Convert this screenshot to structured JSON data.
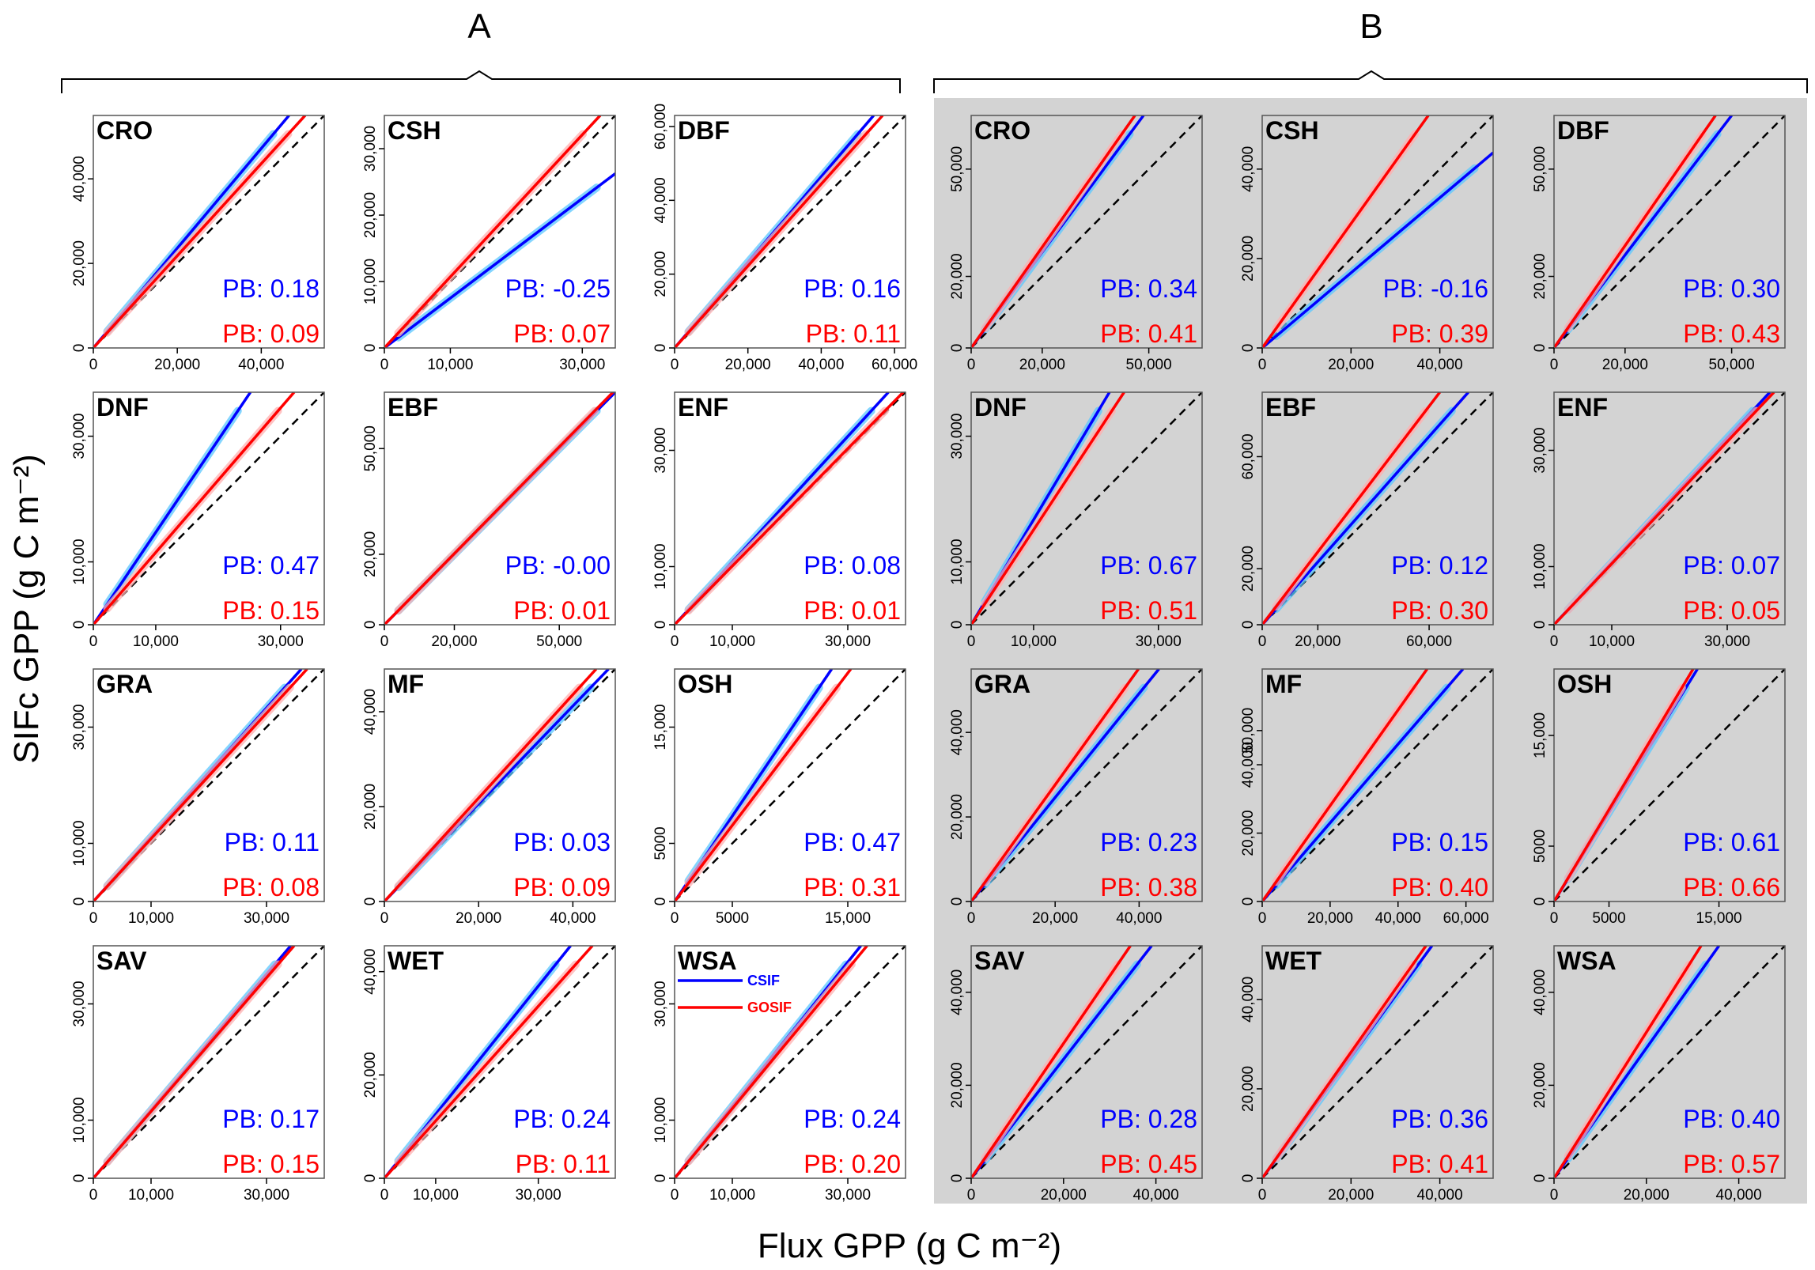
{
  "figure": {
    "group_labels": [
      "A",
      "B"
    ],
    "y_axis_label": "SIFc GPP (g C m⁻²)",
    "x_axis_label": "Flux GPP (g C m⁻²)",
    "legend": [
      {
        "name": "CSIF",
        "color": "#0000ff"
      },
      {
        "name": "GOSIF",
        "color": "#ff0000"
      }
    ],
    "colors": {
      "csif": "#0000ff",
      "gosif": "#ff0000",
      "csif_band": "#5cc8ff",
      "gosif_band": "#ffb0b0",
      "panel_b_background": "#d3d3d3"
    }
  },
  "chart_data": [
    {
      "type": "line",
      "group": "A",
      "title": "CRO",
      "xlim": [
        0,
        55000
      ],
      "ylim": [
        0,
        55000
      ],
      "xticks": [
        0,
        20000,
        40000
      ],
      "xtick_labels": [
        "0",
        "20,000",
        "40,000"
      ],
      "yticks": [
        0,
        20000,
        40000
      ],
      "ytick_labels": [
        "0",
        "20,000",
        "40,000"
      ],
      "series": [
        {
          "name": "CSIF",
          "slope": 1.18,
          "pb_label": "PB: 0.18"
        },
        {
          "name": "GOSIF",
          "slope": 1.09,
          "pb_label": "PB: 0.09"
        }
      ]
    },
    {
      "type": "line",
      "group": "A",
      "title": "CSH",
      "xlim": [
        0,
        35000
      ],
      "ylim": [
        0,
        35000
      ],
      "xticks": [
        0,
        10000,
        30000
      ],
      "xtick_labels": [
        "0",
        "10,000",
        "30,000"
      ],
      "yticks": [
        0,
        10000,
        20000,
        30000
      ],
      "ytick_labels": [
        "0",
        "10,000",
        "20,000",
        "30,000"
      ],
      "series": [
        {
          "name": "CSIF",
          "slope": 0.75,
          "pb_label": "PB: -0.25"
        },
        {
          "name": "GOSIF",
          "slope": 1.07,
          "pb_label": "PB: 0.07"
        }
      ]
    },
    {
      "type": "line",
      "group": "A",
      "title": "DBF",
      "xlim": [
        0,
        63000
      ],
      "ylim": [
        0,
        63000
      ],
      "xticks": [
        0,
        20000,
        40000,
        60000
      ],
      "xtick_labels": [
        "0",
        "20,000",
        "40,000",
        "60,000"
      ],
      "yticks": [
        0,
        20000,
        40000,
        60000
      ],
      "ytick_labels": [
        "0",
        "20,000",
        "40,000",
        "60,000"
      ],
      "series": [
        {
          "name": "CSIF",
          "slope": 1.16,
          "pb_label": "PB: 0.16"
        },
        {
          "name": "GOSIF",
          "slope": 1.11,
          "pb_label": "PB: 0.11"
        }
      ]
    },
    {
      "type": "line",
      "group": "A",
      "title": "DNF",
      "xlim": [
        0,
        37000
      ],
      "ylim": [
        0,
        37000
      ],
      "xticks": [
        0,
        10000,
        30000
      ],
      "xtick_labels": [
        "0",
        "10,000",
        "30,000"
      ],
      "yticks": [
        0,
        10000,
        30000
      ],
      "ytick_labels": [
        "0",
        "10,000",
        "30,000"
      ],
      "series": [
        {
          "name": "CSIF",
          "slope": 1.47,
          "pb_label": "PB: 0.47"
        },
        {
          "name": "GOSIF",
          "slope": 1.15,
          "pb_label": "PB: 0.15"
        }
      ]
    },
    {
      "type": "line",
      "group": "A",
      "title": "EBF",
      "xlim": [
        0,
        66000
      ],
      "ylim": [
        0,
        66000
      ],
      "xticks": [
        0,
        20000,
        50000
      ],
      "xtick_labels": [
        "0",
        "20,000",
        "50,000"
      ],
      "yticks": [
        0,
        20000,
        50000
      ],
      "ytick_labels": [
        "0",
        "20,000",
        "50,000"
      ],
      "series": [
        {
          "name": "CSIF",
          "slope": 1.0,
          "pb_label": "PB: -0.00"
        },
        {
          "name": "GOSIF",
          "slope": 1.01,
          "pb_label": "PB: 0.01"
        }
      ]
    },
    {
      "type": "line",
      "group": "A",
      "title": "ENF",
      "xlim": [
        0,
        40000
      ],
      "ylim": [
        0,
        40000
      ],
      "xticks": [
        0,
        10000,
        30000
      ],
      "xtick_labels": [
        "0",
        "10,000",
        "30,000"
      ],
      "yticks": [
        0,
        10000,
        30000
      ],
      "ytick_labels": [
        "0",
        "10,000",
        "30,000"
      ],
      "series": [
        {
          "name": "CSIF",
          "slope": 1.08,
          "pb_label": "PB: 0.08"
        },
        {
          "name": "GOSIF",
          "slope": 1.01,
          "pb_label": "PB: 0.01"
        }
      ]
    },
    {
      "type": "line",
      "group": "A",
      "title": "GRA",
      "xlim": [
        0,
        40000
      ],
      "ylim": [
        0,
        40000
      ],
      "xticks": [
        0,
        10000,
        30000
      ],
      "xtick_labels": [
        "0",
        "10,000",
        "30,000"
      ],
      "yticks": [
        0,
        10000,
        30000
      ],
      "ytick_labels": [
        "0",
        "10,000",
        "30,000"
      ],
      "series": [
        {
          "name": "CSIF",
          "slope": 1.11,
          "pb_label": "PB: 0.11"
        },
        {
          "name": "GOSIF",
          "slope": 1.08,
          "pb_label": "PB: 0.08"
        }
      ]
    },
    {
      "type": "line",
      "group": "A",
      "title": "MF",
      "xlim": [
        0,
        49000
      ],
      "ylim": [
        0,
        49000
      ],
      "xticks": [
        0,
        20000,
        40000
      ],
      "xtick_labels": [
        "0",
        "20,000",
        "40,000"
      ],
      "yticks": [
        0,
        20000,
        40000
      ],
      "ytick_labels": [
        "0",
        "20,000",
        "40,000"
      ],
      "series": [
        {
          "name": "CSIF",
          "slope": 1.03,
          "pb_label": "PB: 0.03"
        },
        {
          "name": "GOSIF",
          "slope": 1.09,
          "pb_label": "PB: 0.09"
        }
      ]
    },
    {
      "type": "line",
      "group": "A",
      "title": "OSH",
      "xlim": [
        0,
        20000
      ],
      "ylim": [
        0,
        20000
      ],
      "xticks": [
        0,
        5000,
        15000
      ],
      "xtick_labels": [
        "0",
        "5000",
        "15,000"
      ],
      "yticks": [
        0,
        5000,
        15000
      ],
      "ytick_labels": [
        "0",
        "5000",
        "15,000"
      ],
      "series": [
        {
          "name": "CSIF",
          "slope": 1.47,
          "pb_label": "PB: 0.47"
        },
        {
          "name": "GOSIF",
          "slope": 1.31,
          "pb_label": "PB: 0.31"
        }
      ]
    },
    {
      "type": "line",
      "group": "A",
      "title": "SAV",
      "xlim": [
        0,
        40000
      ],
      "ylim": [
        0,
        40000
      ],
      "xticks": [
        0,
        10000,
        30000
      ],
      "xtick_labels": [
        "0",
        "10,000",
        "30,000"
      ],
      "yticks": [
        0,
        10000,
        30000
      ],
      "ytick_labels": [
        "0",
        "10,000",
        "30,000"
      ],
      "series": [
        {
          "name": "CSIF",
          "slope": 1.17,
          "pb_label": "PB: 0.17"
        },
        {
          "name": "GOSIF",
          "slope": 1.15,
          "pb_label": "PB: 0.15"
        }
      ]
    },
    {
      "type": "line",
      "group": "A",
      "title": "WET",
      "xlim": [
        0,
        45000
      ],
      "ylim": [
        0,
        45000
      ],
      "xticks": [
        0,
        10000,
        30000
      ],
      "xtick_labels": [
        "0",
        "10,000",
        "30,000"
      ],
      "yticks": [
        0,
        20000,
        40000
      ],
      "ytick_labels": [
        "0",
        "20,000",
        "40,000"
      ],
      "series": [
        {
          "name": "CSIF",
          "slope": 1.24,
          "pb_label": "PB: 0.24"
        },
        {
          "name": "GOSIF",
          "slope": 1.11,
          "pb_label": "PB: 0.11"
        }
      ]
    },
    {
      "type": "line",
      "group": "A",
      "title": "WSA",
      "xlim": [
        0,
        40000
      ],
      "ylim": [
        0,
        40000
      ],
      "xticks": [
        0,
        10000,
        30000
      ],
      "xtick_labels": [
        "0",
        "10,000",
        "30,000"
      ],
      "yticks": [
        0,
        10000,
        30000
      ],
      "ytick_labels": [
        "0",
        "10,000",
        "30,000"
      ],
      "legend": true,
      "series": [
        {
          "name": "CSIF",
          "slope": 1.24,
          "pb_label": "PB: 0.24"
        },
        {
          "name": "GOSIF",
          "slope": 1.2,
          "pb_label": "PB: 0.20"
        }
      ]
    },
    {
      "type": "line",
      "group": "B",
      "title": "CRO",
      "xlim": [
        0,
        65000
      ],
      "ylim": [
        0,
        65000
      ],
      "xticks": [
        0,
        20000,
        50000
      ],
      "xtick_labels": [
        "0",
        "20,000",
        "50,000"
      ],
      "yticks": [
        0,
        20000,
        50000
      ],
      "ytick_labels": [
        "0",
        "20,000",
        "50,000"
      ],
      "series": [
        {
          "name": "CSIF",
          "slope": 1.34,
          "pb_label": "PB: 0.34"
        },
        {
          "name": "GOSIF",
          "slope": 1.41,
          "pb_label": "PB: 0.41"
        }
      ]
    },
    {
      "type": "line",
      "group": "B",
      "title": "CSH",
      "xlim": [
        0,
        52000
      ],
      "ylim": [
        0,
        52000
      ],
      "xticks": [
        0,
        20000,
        40000
      ],
      "xtick_labels": [
        "0",
        "20,000",
        "40,000"
      ],
      "yticks": [
        0,
        20000,
        40000
      ],
      "ytick_labels": [
        "0",
        "20,000",
        "40,000"
      ],
      "series": [
        {
          "name": "CSIF",
          "slope": 0.84,
          "pb_label": "PB: -0.16"
        },
        {
          "name": "GOSIF",
          "slope": 1.39,
          "pb_label": "PB: 0.39"
        }
      ]
    },
    {
      "type": "line",
      "group": "B",
      "title": "DBF",
      "xlim": [
        0,
        65000
      ],
      "ylim": [
        0,
        65000
      ],
      "xticks": [
        0,
        20000,
        50000
      ],
      "xtick_labels": [
        "0",
        "20,000",
        "50,000"
      ],
      "yticks": [
        0,
        20000,
        50000
      ],
      "ytick_labels": [
        "0",
        "20,000",
        "50,000"
      ],
      "series": [
        {
          "name": "CSIF",
          "slope": 1.3,
          "pb_label": "PB: 0.30"
        },
        {
          "name": "GOSIF",
          "slope": 1.43,
          "pb_label": "PB: 0.43"
        }
      ]
    },
    {
      "type": "line",
      "group": "B",
      "title": "DNF",
      "xlim": [
        0,
        37000
      ],
      "ylim": [
        0,
        37000
      ],
      "xticks": [
        0,
        10000,
        30000
      ],
      "xtick_labels": [
        "0",
        "10,000",
        "30,000"
      ],
      "yticks": [
        0,
        10000,
        30000
      ],
      "ytick_labels": [
        "0",
        "10,000",
        "30,000"
      ],
      "series": [
        {
          "name": "CSIF",
          "slope": 1.67,
          "pb_label": "PB: 0.67"
        },
        {
          "name": "GOSIF",
          "slope": 1.51,
          "pb_label": "PB: 0.51"
        }
      ]
    },
    {
      "type": "line",
      "group": "B",
      "title": "EBF",
      "xlim": [
        0,
        83000
      ],
      "ylim": [
        0,
        83000
      ],
      "xticks": [
        0,
        20000,
        60000
      ],
      "xtick_labels": [
        "0",
        "20,000",
        "60,000"
      ],
      "yticks": [
        0,
        20000,
        60000
      ],
      "ytick_labels": [
        "0",
        "20,000",
        "60,000"
      ],
      "series": [
        {
          "name": "CSIF",
          "slope": 1.12,
          "pb_label": "PB: 0.12"
        },
        {
          "name": "GOSIF",
          "slope": 1.3,
          "pb_label": "PB: 0.30"
        }
      ]
    },
    {
      "type": "line",
      "group": "B",
      "title": "ENF",
      "xlim": [
        0,
        40000
      ],
      "ylim": [
        0,
        40000
      ],
      "xticks": [
        0,
        10000,
        30000
      ],
      "xtick_labels": [
        "0",
        "10,000",
        "30,000"
      ],
      "yticks": [
        0,
        10000,
        30000
      ],
      "ytick_labels": [
        "0",
        "10,000",
        "30,000"
      ],
      "series": [
        {
          "name": "CSIF",
          "slope": 1.07,
          "pb_label": "PB: 0.07"
        },
        {
          "name": "GOSIF",
          "slope": 1.05,
          "pb_label": "PB: 0.05"
        }
      ]
    },
    {
      "type": "line",
      "group": "B",
      "title": "GRA",
      "xlim": [
        0,
        55000
      ],
      "ylim": [
        0,
        55000
      ],
      "xticks": [
        0,
        20000,
        40000
      ],
      "xtick_labels": [
        "0",
        "20,000",
        "40,000"
      ],
      "yticks": [
        0,
        20000,
        40000
      ],
      "ytick_labels": [
        "0",
        "20,000",
        "40,000"
      ],
      "series": [
        {
          "name": "CSIF",
          "slope": 1.23,
          "pb_label": "PB: 0.23"
        },
        {
          "name": "GOSIF",
          "slope": 1.38,
          "pb_label": "PB: 0.38"
        }
      ]
    },
    {
      "type": "line",
      "group": "B",
      "title": "MF",
      "xlim": [
        0,
        68000
      ],
      "ylim": [
        0,
        68000
      ],
      "xticks": [
        0,
        20000,
        40000,
        60000
      ],
      "xtick_labels": [
        "0",
        "20,000",
        "40,000",
        "60,000"
      ],
      "yticks": [
        0,
        20000,
        40000,
        50000
      ],
      "ytick_labels": [
        "0",
        "20,000",
        "40,000",
        "50,000"
      ],
      "series": [
        {
          "name": "CSIF",
          "slope": 1.15,
          "pb_label": "PB: 0.15"
        },
        {
          "name": "GOSIF",
          "slope": 1.4,
          "pb_label": "PB: 0.40"
        }
      ]
    },
    {
      "type": "line",
      "group": "B",
      "title": "OSH",
      "xlim": [
        0,
        21000
      ],
      "ylim": [
        0,
        21000
      ],
      "xticks": [
        0,
        5000,
        15000
      ],
      "xtick_labels": [
        "0",
        "5000",
        "15,000"
      ],
      "yticks": [
        0,
        5000,
        15000
      ],
      "ytick_labels": [
        "0",
        "5000",
        "15,000"
      ],
      "series": [
        {
          "name": "CSIF",
          "slope": 1.61,
          "pb_label": "PB: 0.61"
        },
        {
          "name": "GOSIF",
          "slope": 1.66,
          "pb_label": "PB: 0.66"
        }
      ]
    },
    {
      "type": "line",
      "group": "B",
      "title": "SAV",
      "xlim": [
        0,
        50000
      ],
      "ylim": [
        0,
        50000
      ],
      "xticks": [
        0,
        20000,
        40000
      ],
      "xtick_labels": [
        "0",
        "20,000",
        "40,000"
      ],
      "yticks": [
        0,
        20000,
        40000
      ],
      "ytick_labels": [
        "0",
        "20,000",
        "40,000"
      ],
      "series": [
        {
          "name": "CSIF",
          "slope": 1.28,
          "pb_label": "PB: 0.28"
        },
        {
          "name": "GOSIF",
          "slope": 1.45,
          "pb_label": "PB: 0.45"
        }
      ]
    },
    {
      "type": "line",
      "group": "B",
      "title": "WET",
      "xlim": [
        0,
        52000
      ],
      "ylim": [
        0,
        52000
      ],
      "xticks": [
        0,
        20000,
        40000
      ],
      "xtick_labels": [
        "0",
        "20,000",
        "40,000"
      ],
      "yticks": [
        0,
        20000,
        40000
      ],
      "ytick_labels": [
        "0",
        "20,000",
        "40,000"
      ],
      "series": [
        {
          "name": "CSIF",
          "slope": 1.36,
          "pb_label": "PB: 0.36"
        },
        {
          "name": "GOSIF",
          "slope": 1.41,
          "pb_label": "PB: 0.41"
        }
      ]
    },
    {
      "type": "line",
      "group": "B",
      "title": "WSA",
      "xlim": [
        0,
        50000
      ],
      "ylim": [
        0,
        50000
      ],
      "xticks": [
        0,
        20000,
        40000
      ],
      "xtick_labels": [
        "0",
        "20,000",
        "40,000"
      ],
      "yticks": [
        0,
        20000,
        40000
      ],
      "ytick_labels": [
        "0",
        "20,000",
        "40,000"
      ],
      "series": [
        {
          "name": "CSIF",
          "slope": 1.4,
          "pb_label": "PB: 0.40"
        },
        {
          "name": "GOSIF",
          "slope": 1.57,
          "pb_label": "PB: 0.57"
        }
      ]
    }
  ]
}
